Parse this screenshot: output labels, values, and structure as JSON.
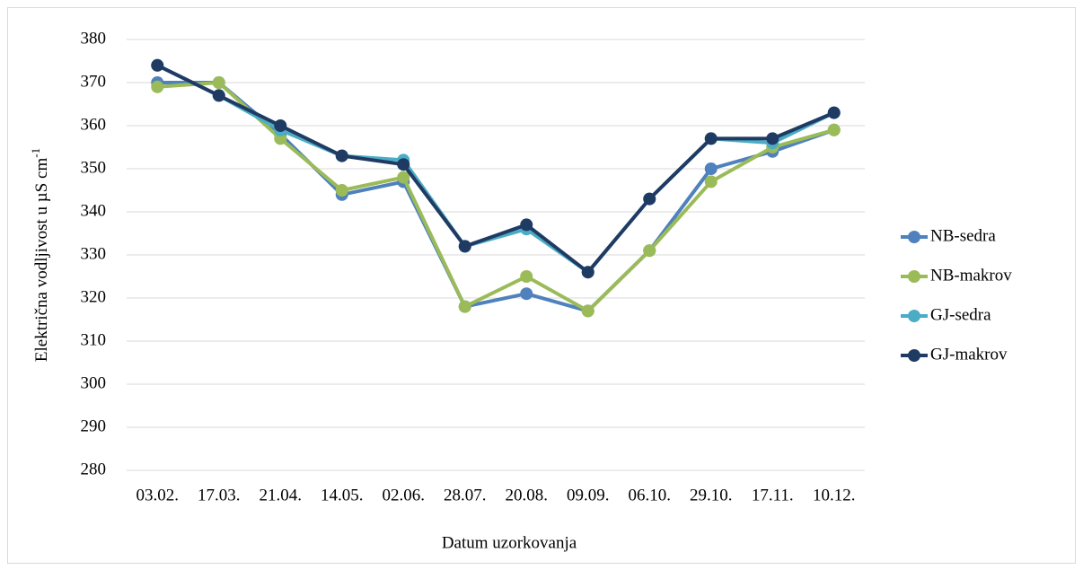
{
  "chart_data": {
    "type": "line",
    "xlabel": "Datum uzorkovanja",
    "ylabel": "Električna vodljivost  u µS cm",
    "ylabel_superscript": "-1",
    "categories": [
      "03.02.",
      "17.03.",
      "21.04.",
      "14.05.",
      "02.06.",
      "28.07.",
      "20.08.",
      "09.09.",
      "06.10.",
      "29.10.",
      "17.11.",
      "10.12."
    ],
    "series": [
      {
        "name": "NB-sedra",
        "color": "#4f81bd",
        "values": [
          370,
          370,
          358,
          344,
          347,
          318,
          321,
          317,
          331,
          350,
          354,
          359
        ]
      },
      {
        "name": "NB-makrov",
        "color": "#9bbb59",
        "values": [
          369,
          370,
          357,
          345,
          348,
          318,
          325,
          317,
          331,
          347,
          355,
          359
        ]
      },
      {
        "name": "GJ-sedra",
        "color": "#4bacc6",
        "values": [
          374,
          367,
          359,
          353,
          352,
          332,
          336,
          326,
          343,
          357,
          356,
          363
        ]
      },
      {
        "name": "GJ-makrov",
        "color": "#1f3b63",
        "values": [
          374,
          367,
          360,
          353,
          351,
          332,
          337,
          326,
          343,
          357,
          357,
          363
        ]
      }
    ],
    "ylim": [
      280,
      380
    ],
    "yticks": [
      280,
      290,
      300,
      310,
      320,
      330,
      340,
      350,
      360,
      370,
      380
    ],
    "grid": true,
    "legend": "right"
  }
}
